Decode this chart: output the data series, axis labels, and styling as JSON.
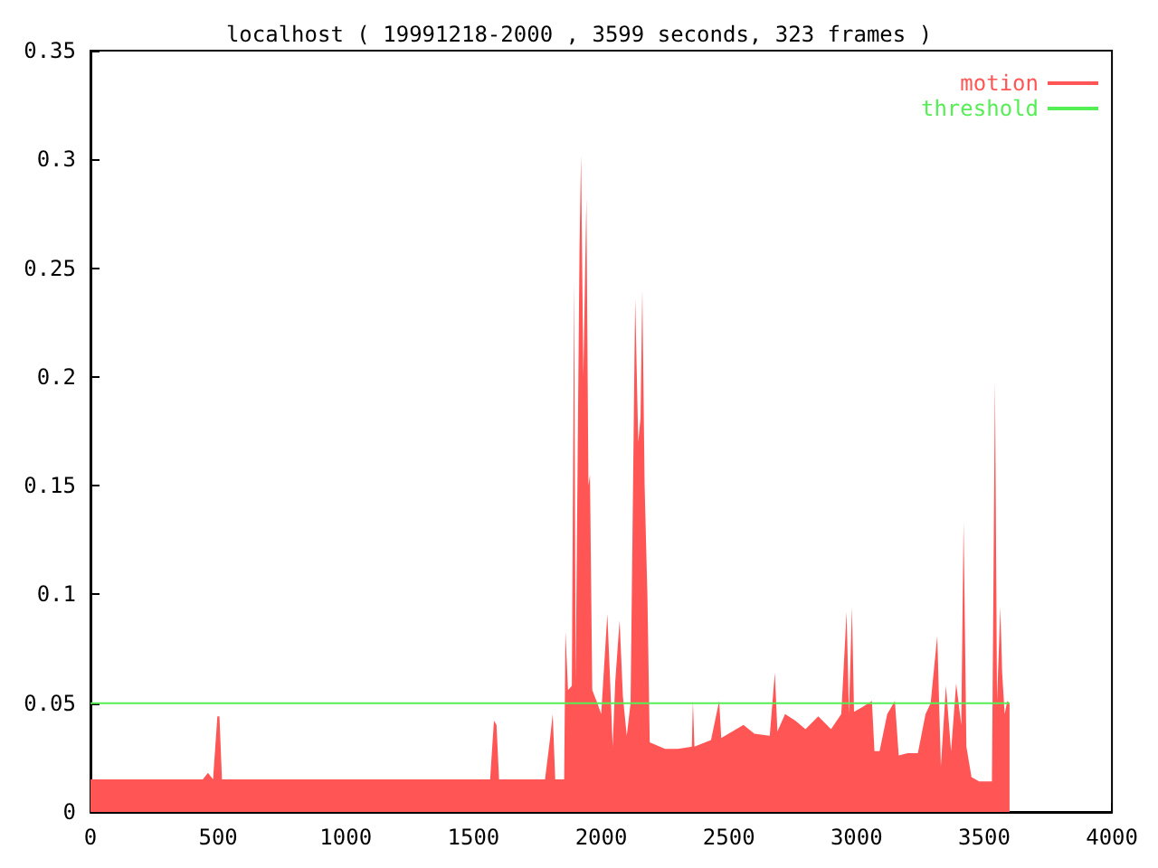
{
  "chart_data": {
    "type": "area",
    "title": "localhost ( 19991218-2000 , 3599 seconds, 323 frames )",
    "xlim": [
      0,
      4000
    ],
    "xticks": [
      0,
      500,
      1000,
      1500,
      2000,
      2500,
      3000,
      3500,
      4000
    ],
    "ylim": [
      0,
      0.35
    ],
    "yticks": [
      0,
      0.05,
      0.1,
      0.15,
      0.2,
      0.25,
      0.3,
      0.35
    ],
    "grid": false,
    "legend": "top right",
    "series": [
      {
        "name": "motion",
        "color": "#ff5555",
        "x": [
          0,
          200,
          440,
          460,
          480,
          497,
          505,
          515,
          800,
          1100,
          1400,
          1565,
          1580,
          1590,
          1600,
          1780,
          1800,
          1810,
          1820,
          1855,
          1860,
          1870,
          1885,
          1894,
          1900,
          1915,
          1921,
          1930,
          1942,
          1950,
          1956,
          1965,
          1985,
          2000,
          2024,
          2035,
          2045,
          2055,
          2072,
          2085,
          2100,
          2115,
          2133,
          2145,
          2154,
          2161,
          2170,
          2181,
          2190,
          2250,
          2300,
          2355,
          2359,
          2365,
          2430,
          2462,
          2470,
          2557,
          2600,
          2660,
          2680,
          2690,
          2720,
          2760,
          2800,
          2850,
          2900,
          2940,
          2961,
          2970,
          2982,
          2990,
          3020,
          3060,
          3070,
          3090,
          3120,
          3150,
          3165,
          3200,
          3240,
          3270,
          3290,
          3316,
          3330,
          3350,
          3370,
          3390,
          3410,
          3419,
          3430,
          3450,
          3480,
          3530,
          3542,
          3550,
          3563,
          3570,
          3580,
          3590,
          3599
        ],
        "values": [
          0.015,
          0.015,
          0.015,
          0.018,
          0.015,
          0.044,
          0.044,
          0.015,
          0.015,
          0.015,
          0.015,
          0.015,
          0.042,
          0.04,
          0.015,
          0.015,
          0.034,
          0.045,
          0.015,
          0.015,
          0.083,
          0.056,
          0.058,
          0.244,
          0.06,
          0.258,
          0.302,
          0.2,
          0.282,
          0.15,
          0.155,
          0.056,
          0.05,
          0.045,
          0.091,
          0.06,
          0.03,
          0.06,
          0.088,
          0.053,
          0.035,
          0.05,
          0.236,
          0.17,
          0.181,
          0.24,
          0.15,
          0.099,
          0.032,
          0.029,
          0.029,
          0.03,
          0.051,
          0.03,
          0.033,
          0.051,
          0.034,
          0.04,
          0.036,
          0.035,
          0.064,
          0.037,
          0.045,
          0.042,
          0.038,
          0.044,
          0.038,
          0.045,
          0.092,
          0.045,
          0.094,
          0.046,
          0.048,
          0.051,
          0.028,
          0.028,
          0.045,
          0.051,
          0.026,
          0.027,
          0.027,
          0.045,
          0.05,
          0.081,
          0.021,
          0.058,
          0.028,
          0.059,
          0.04,
          0.133,
          0.03,
          0.016,
          0.014,
          0.014,
          0.198,
          0.051,
          0.094,
          0.064,
          0.045,
          0.051,
          0.05
        ]
      },
      {
        "name": "threshold",
        "type": "line",
        "color": "#55ee55",
        "x": [
          0,
          3599
        ],
        "values": [
          0.05,
          0.05
        ]
      }
    ]
  }
}
